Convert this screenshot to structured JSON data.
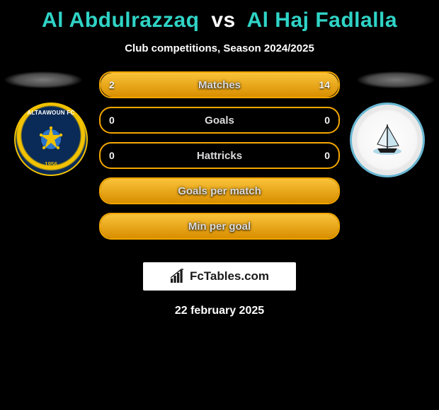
{
  "header": {
    "player1": "Al Abdulrazzaq",
    "vs": "vs",
    "player2": "Al Haj Fadlalla",
    "subtitle": "Club competitions, Season 2024/2025"
  },
  "badges": {
    "left": {
      "arc_text": "ALTAAWOUN FC",
      "year": "1956",
      "bg_color": "#0a2b57",
      "accent_color": "#f2c200"
    },
    "right": {
      "ring_color": "#69b8d4",
      "bg_color": "#ffffff"
    }
  },
  "stats": {
    "rows": [
      {
        "label": "Matches",
        "left_val": "2",
        "right_val": "14",
        "left_pct": 12.5,
        "right_pct": 87.5,
        "show_vals": true
      },
      {
        "label": "Goals",
        "left_val": "0",
        "right_val": "0",
        "left_pct": 0,
        "right_pct": 0,
        "show_vals": true
      },
      {
        "label": "Hattricks",
        "left_val": "0",
        "right_val": "0",
        "left_pct": 0,
        "right_pct": 0,
        "show_vals": true
      },
      {
        "label": "Goals per match",
        "left_val": "",
        "right_val": "",
        "left_pct": 100,
        "right_pct": 0,
        "show_vals": false,
        "full_fill": true
      },
      {
        "label": "Min per goal",
        "left_val": "",
        "right_val": "",
        "left_pct": 100,
        "right_pct": 0,
        "show_vals": false,
        "full_fill": true
      }
    ],
    "row_border_color": "#f2a600",
    "fill_gradient_top": "#f9c33a",
    "fill_gradient_bottom": "#d98e00",
    "label_color": "#dcdcdc"
  },
  "logo": {
    "text": "FcTables.com",
    "bar_color": "#1a1a1a",
    "bg_color": "#ffffff"
  },
  "date": "22 february 2025",
  "colors": {
    "page_bg": "#000000",
    "title_accent": "#2fd4c6",
    "title_vs": "#ffffff"
  }
}
